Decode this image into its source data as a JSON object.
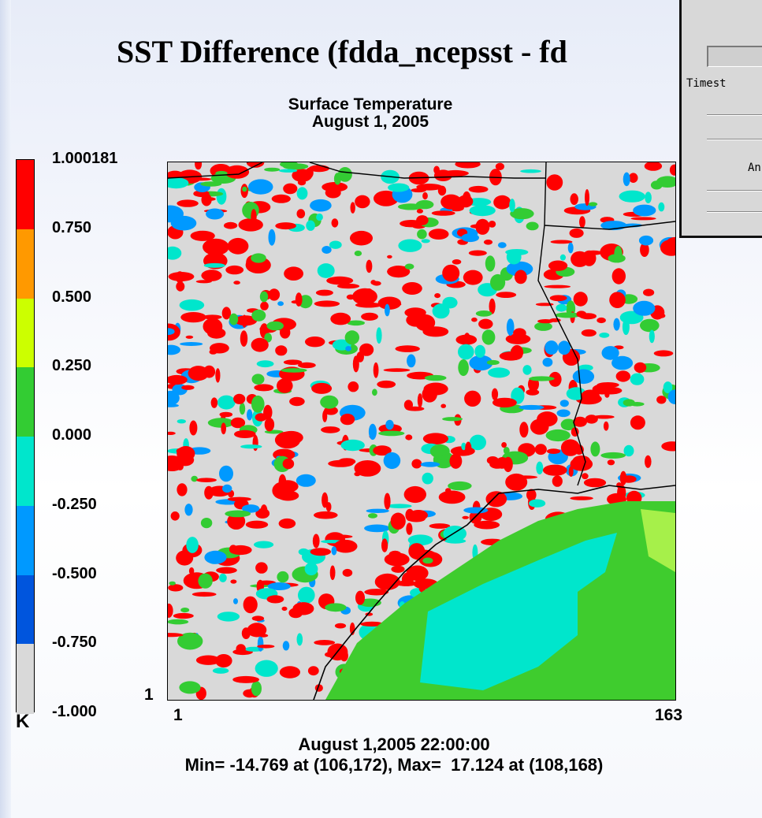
{
  "plot": {
    "title": "SST Difference (fdda_ncepsst - fd",
    "subtitle_line1": "Surface Temperature",
    "subtitle_line2": "August 1, 2005",
    "units": "K",
    "axis": {
      "origin_y": "1",
      "x_start": "1",
      "x_end": "163"
    },
    "footer_line1": "August 1,2005 22:00:00",
    "footer_line2": "Min= -14.769 at (106,172), Max=  17.124 at (108,168)"
  },
  "colorbar": {
    "labels": [
      "1.000181",
      "0.750",
      "0.500",
      "0.250",
      "0.000",
      "-0.250",
      "-0.500",
      "-0.750",
      "-1.000"
    ],
    "colors": [
      "#ff0000",
      "#ff9900",
      "#ccff00",
      "#33cc33",
      "#00e6cc",
      "#0099ff",
      "#0055dd",
      "#d9d9d9"
    ]
  },
  "dialog": {
    "timestep_label": "Timest",
    "button_label": "An"
  }
}
